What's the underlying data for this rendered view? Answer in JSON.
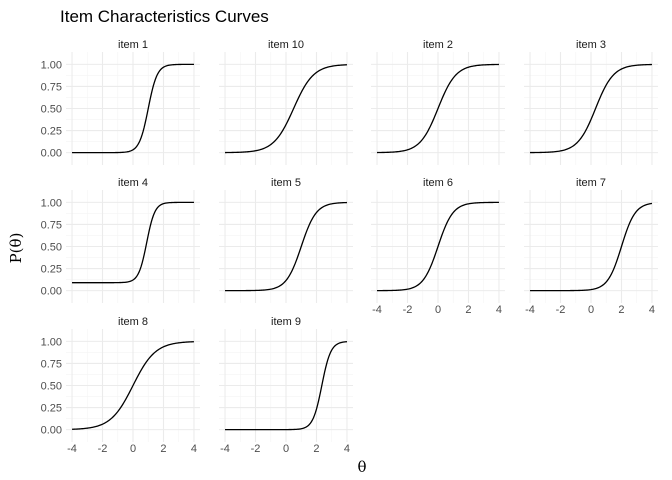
{
  "chart_data": {
    "type": "line",
    "title": "Item Characteristics Curves",
    "xlabel": "θ",
    "ylabel": "P(θ)",
    "xlim": [
      -4,
      4
    ],
    "ylim": [
      0,
      1
    ],
    "x_ticks": [
      -4,
      -2,
      0,
      2,
      4
    ],
    "y_ticks": [
      0,
      0.25,
      0.5,
      0.75,
      1
    ],
    "x_tick_labels": [
      "-4",
      "-2",
      "0",
      "2",
      "4"
    ],
    "y_tick_labels": [
      "0.00",
      "0.25",
      "0.50",
      "0.75",
      "1.00"
    ],
    "grid": true,
    "facet_layout": {
      "columns": 4,
      "rows": 3
    },
    "series": [
      {
        "name": "item 1",
        "a": 2.0,
        "b": 1.0,
        "c": 0.0
      },
      {
        "name": "item 10",
        "a": 0.9,
        "b": 0.5,
        "c": 0.0
      },
      {
        "name": "item 2",
        "a": 1.0,
        "b": 0.0,
        "c": 0.0
      },
      {
        "name": "item 3",
        "a": 1.0,
        "b": 0.3,
        "c": 0.0
      },
      {
        "name": "item 4",
        "a": 2.2,
        "b": 0.9,
        "c": 0.09
      },
      {
        "name": "item 5",
        "a": 1.2,
        "b": 1.0,
        "c": 0.0
      },
      {
        "name": "item 6",
        "a": 1.2,
        "b": 0.0,
        "c": 0.0
      },
      {
        "name": "item 7",
        "a": 1.3,
        "b": 2.0,
        "c": 0.0
      },
      {
        "name": "item 8",
        "a": 0.8,
        "b": 0.0,
        "c": 0.0
      },
      {
        "name": "item 9",
        "a": 2.0,
        "b": 2.35,
        "c": 0.0
      }
    ]
  }
}
